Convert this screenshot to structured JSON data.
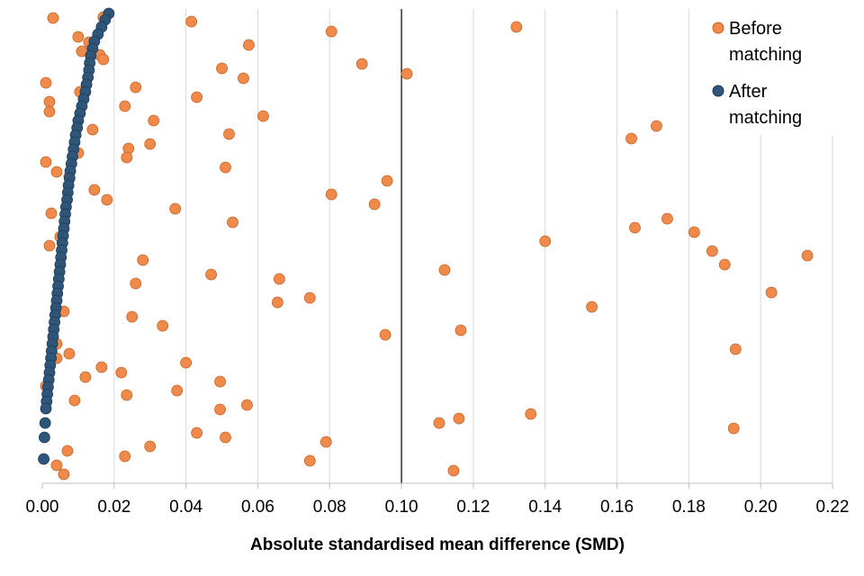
{
  "chart_data": {
    "type": "scatter",
    "title": "",
    "xlabel": "Absolute standardised mean difference (SMD)",
    "ylabel": "",
    "xlim": [
      0.0,
      0.22
    ],
    "x_ticks": [
      "0.00",
      "0.02",
      "0.04",
      "0.06",
      "0.08",
      "0.10",
      "0.12",
      "0.14",
      "0.16",
      "0.18",
      "0.20",
      "0.22"
    ],
    "grid": "vertical",
    "reference_line_x": 0.1,
    "legend_position": "top-right",
    "colors": {
      "before": "#f08a4b",
      "after": "#2f5679",
      "grid": "#d9d9d9",
      "reference": "#000000"
    },
    "series": [
      {
        "name": "Before matching",
        "marker": "circle",
        "x": [
          0.017,
          0.003,
          0.0415,
          0.132,
          0.0805,
          0.01,
          0.013,
          0.0575,
          0.011,
          0.016,
          0.017,
          0.089,
          0.05,
          0.1015,
          0.056,
          0.001,
          0.026,
          0.0105,
          0.043,
          0.002,
          0.023,
          0.002,
          0.0615,
          0.031,
          0.171,
          0.014,
          0.052,
          0.164,
          0.03,
          0.024,
          0.01,
          0.0235,
          0.001,
          0.051,
          0.004,
          0.0075,
          0.096,
          0.0145,
          0.0805,
          0.018,
          0.0925,
          0.037,
          0.0025,
          0.174,
          0.053,
          0.165,
          0.1815,
          0.005,
          0.14,
          0.002,
          0.1865,
          0.213,
          0.028,
          0.19,
          0.112,
          0.047,
          0.066,
          0.026,
          0.203,
          0.0745,
          0.0655,
          0.153,
          0.006,
          0.025,
          0.0335,
          0.0955,
          0.1165,
          0.004,
          0.193,
          0.0075,
          0.004,
          0.04,
          0.0165,
          0.022,
          0.012,
          0.0495,
          0.001,
          0.0375,
          0.0235,
          0.009,
          0.057,
          0.0495,
          0.136,
          0.116,
          0.1105,
          0.1925,
          0.043,
          0.051,
          0.079,
          0.03,
          0.007,
          0.023,
          0.0745,
          0.004,
          0.1145,
          0.006
        ],
        "y": [
          19,
          20,
          24,
          30,
          35,
          41,
          47,
          50,
          57,
          61,
          66,
          71,
          76,
          82,
          87,
          92,
          97,
          102,
          108,
          113,
          118,
          124,
          129,
          134,
          140,
          144,
          149,
          154,
          160,
          165,
          170,
          175,
          180,
          186,
          191,
          196,
          201,
          211,
          216,
          222,
          227,
          232,
          237,
          243,
          247,
          253,
          258,
          263,
          268,
          273,
          279,
          284,
          289,
          294,
          300,
          305,
          310,
          315,
          325,
          331,
          336,
          341,
          346,
          352,
          362,
          372,
          367,
          382,
          388,
          393,
          398,
          403,
          408,
          414,
          419,
          424,
          429,
          434,
          439,
          445,
          450,
          455,
          460,
          465,
          470,
          476,
          481,
          486,
          491,
          496,
          501,
          507,
          512,
          517,
          523,
          527
        ]
      },
      {
        "name": "After matching",
        "marker": "circle",
        "x": [
          0.0185,
          0.0175,
          0.0165,
          0.0155,
          0.0145,
          0.014,
          0.0135,
          0.0132,
          0.013,
          0.0127,
          0.0123,
          0.012,
          0.0115,
          0.011,
          0.0105,
          0.01,
          0.0097,
          0.0093,
          0.009,
          0.0087,
          0.0084,
          0.0081,
          0.0078,
          0.0076,
          0.0073,
          0.0071,
          0.0069,
          0.0066,
          0.0064,
          0.0062,
          0.006,
          0.0058,
          0.0056,
          0.0054,
          0.0052,
          0.005,
          0.0048,
          0.0046,
          0.0044,
          0.0042,
          0.004,
          0.0038,
          0.0036,
          0.0034,
          0.0032,
          0.003,
          0.0028,
          0.0026,
          0.0024,
          0.0022,
          0.002,
          0.0018,
          0.0016,
          0.0014,
          0.0012,
          0.001,
          0.0008,
          0.0006,
          0.0004
        ],
        "y": [
          15,
          22,
          30,
          38,
          46,
          54,
          62,
          70,
          78,
          86,
          94,
          102,
          110,
          118,
          126,
          134,
          142,
          150,
          158,
          166,
          174,
          182,
          190,
          198,
          206,
          214,
          222,
          230,
          238,
          246,
          254,
          262,
          270,
          278,
          286,
          294,
          302,
          310,
          318,
          326,
          334,
          342,
          350,
          358,
          366,
          374,
          382,
          390,
          398,
          406,
          414,
          422,
          430,
          438,
          446,
          454,
          470,
          486,
          510
        ]
      }
    ]
  }
}
